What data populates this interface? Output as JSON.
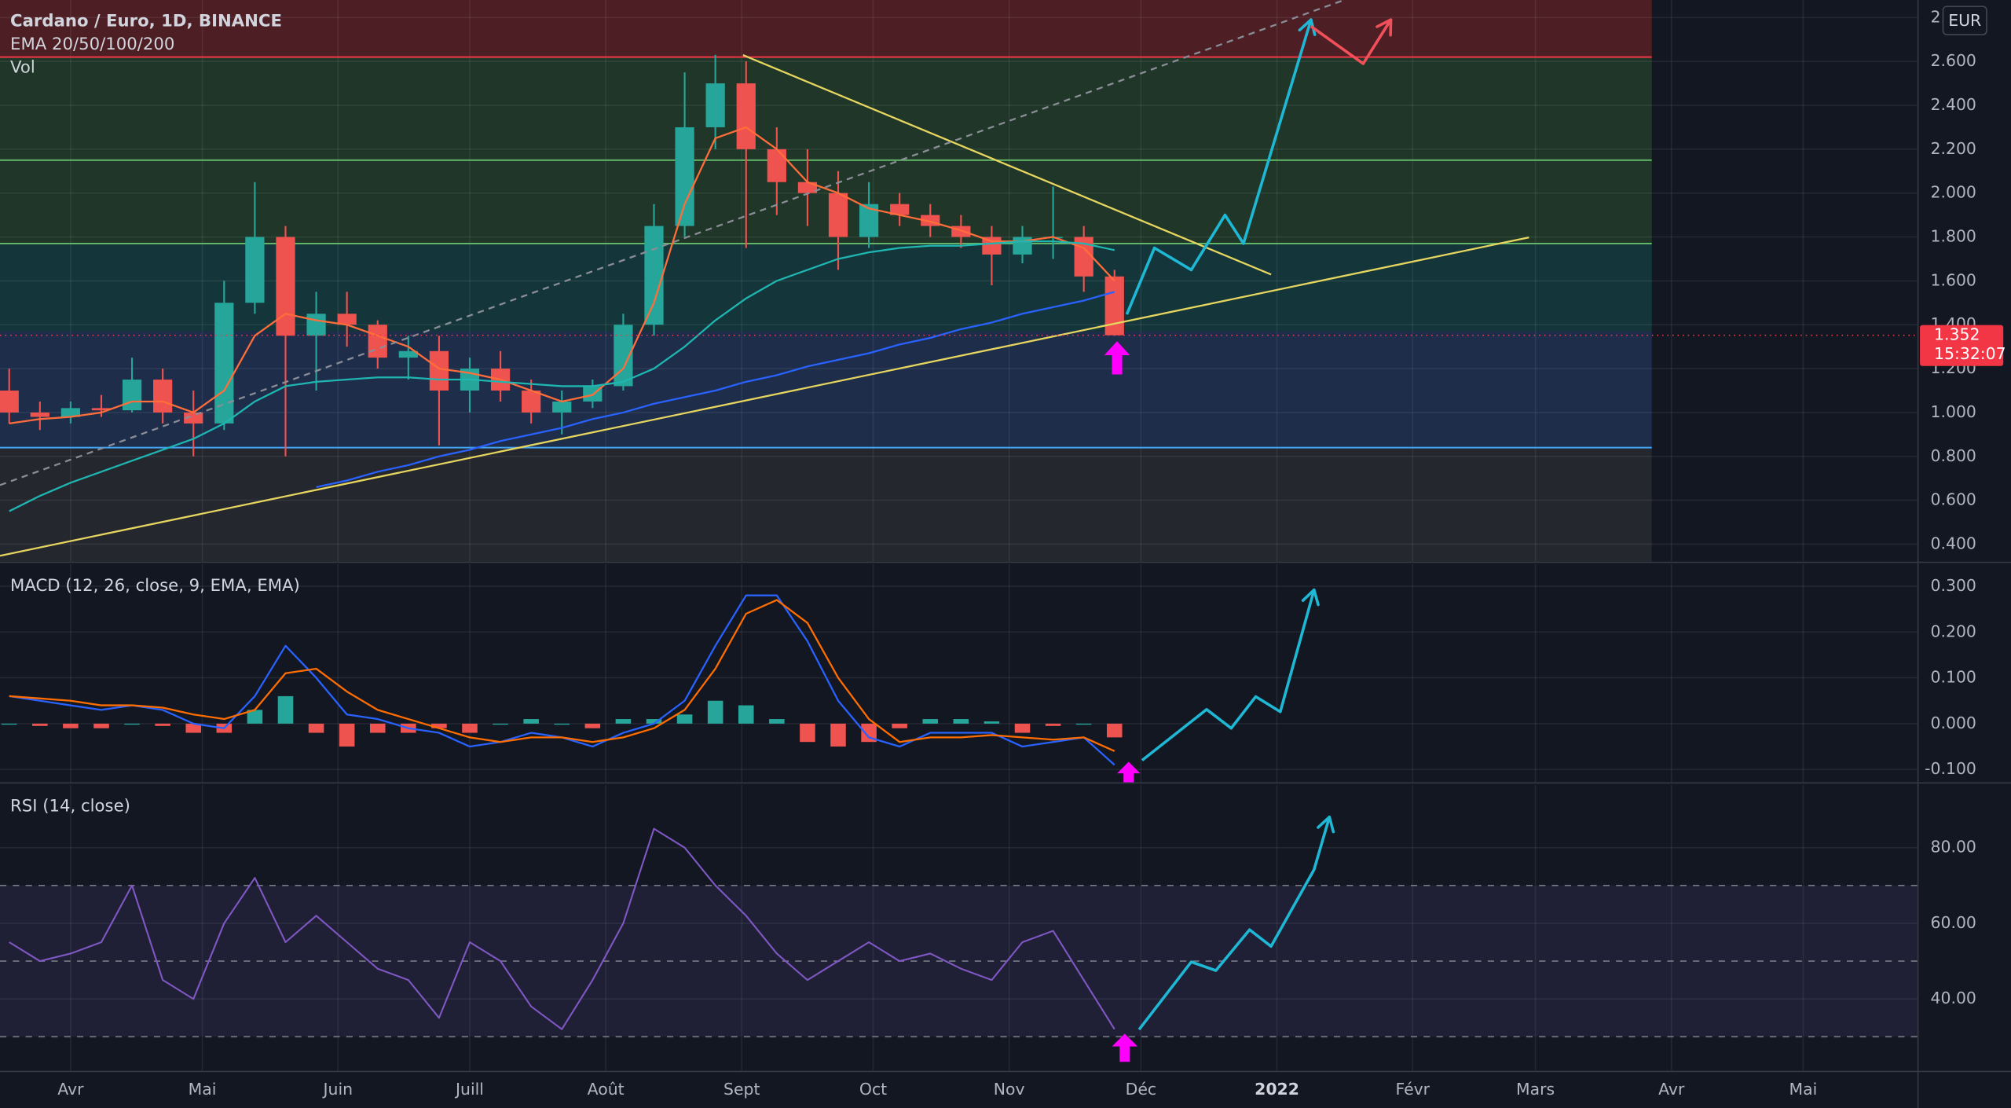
{
  "chart_data": [
    {
      "type": "candlestick",
      "title": "Cardano / Euro, 1D, BINANCE",
      "indicators_label": "EMA 20/50/100/200",
      "volume_label": "Vol",
      "currency": "EUR",
      "x": [
        -2,
        -1,
        0,
        1,
        2,
        3,
        4,
        5,
        6,
        7,
        8,
        9,
        10,
        11,
        12,
        13,
        14,
        15,
        16,
        17,
        18,
        19,
        20,
        21,
        22,
        23,
        24,
        25,
        26,
        27,
        28,
        29,
        30,
        31,
        32,
        33,
        34
      ],
      "open": [
        1.1,
        1.0,
        0.98,
        1.02,
        1.01,
        1.15,
        1.0,
        0.95,
        1.5,
        1.8,
        1.35,
        1.45,
        1.4,
        1.25,
        1.28,
        1.1,
        1.2,
        1.1,
        1.0,
        1.05,
        1.12,
        1.4,
        1.85,
        2.3,
        2.5,
        2.2,
        2.05,
        2.0,
        1.8,
        1.95,
        1.9,
        1.85,
        1.8,
        1.72,
        1.8,
        1.8,
        1.62
      ],
      "high": [
        1.2,
        1.05,
        1.05,
        1.08,
        1.25,
        1.2,
        1.1,
        1.6,
        2.05,
        1.85,
        1.55,
        1.55,
        1.42,
        1.35,
        1.35,
        1.25,
        1.28,
        1.15,
        1.1,
        1.15,
        1.45,
        1.95,
        2.55,
        2.63,
        2.6,
        2.3,
        2.2,
        2.1,
        2.05,
        2.0,
        1.95,
        1.9,
        1.85,
        1.85,
        2.03,
        1.85,
        1.65
      ],
      "low": [
        0.95,
        0.92,
        0.95,
        0.98,
        1.0,
        0.95,
        0.8,
        0.92,
        1.45,
        0.8,
        1.1,
        1.3,
        1.2,
        1.15,
        0.85,
        1.0,
        1.05,
        0.95,
        0.9,
        1.02,
        1.1,
        1.35,
        1.8,
        2.2,
        1.75,
        1.9,
        1.85,
        1.65,
        1.75,
        1.85,
        1.8,
        1.75,
        1.58,
        1.68,
        1.7,
        1.55,
        1.35
      ],
      "close": [
        1.0,
        0.98,
        1.02,
        1.01,
        1.15,
        1.0,
        0.95,
        1.5,
        1.8,
        1.35,
        1.45,
        1.4,
        1.25,
        1.28,
        1.1,
        1.2,
        1.1,
        1.0,
        1.05,
        1.12,
        1.4,
        1.85,
        2.3,
        2.5,
        2.2,
        2.05,
        2.0,
        1.8,
        1.95,
        1.9,
        1.85,
        1.8,
        1.72,
        1.8,
        1.8,
        1.62,
        1.352
      ],
      "up_color": "#26a69a",
      "down_color": "#ef5350",
      "ema_series": [
        {
          "color": "#ff6d3a",
          "values": [
            0.95,
            0.97,
            0.98,
            1.0,
            1.05,
            1.05,
            1.0,
            1.1,
            1.35,
            1.45,
            1.42,
            1.4,
            1.35,
            1.3,
            1.2,
            1.18,
            1.15,
            1.1,
            1.05,
            1.08,
            1.2,
            1.5,
            1.95,
            2.25,
            2.3,
            2.2,
            2.05,
            2.0,
            1.93,
            1.9,
            1.87,
            1.83,
            1.78,
            1.78,
            1.8,
            1.75,
            1.6
          ]
        },
        {
          "color": "#1fb5b0",
          "values": [
            0.55,
            0.62,
            0.68,
            0.73,
            0.78,
            0.83,
            0.88,
            0.95,
            1.05,
            1.12,
            1.14,
            1.15,
            1.16,
            1.16,
            1.15,
            1.15,
            1.14,
            1.13,
            1.12,
            1.12,
            1.14,
            1.2,
            1.3,
            1.42,
            1.52,
            1.6,
            1.65,
            1.7,
            1.73,
            1.75,
            1.76,
            1.76,
            1.77,
            1.78,
            1.78,
            1.77,
            1.74
          ]
        },
        {
          "color": "#2962ff",
          "values": [
            null,
            null,
            null,
            null,
            null,
            null,
            null,
            null,
            null,
            null,
            0.66,
            0.69,
            0.73,
            0.76,
            0.8,
            0.83,
            0.87,
            0.9,
            0.93,
            0.97,
            1.0,
            1.04,
            1.07,
            1.1,
            1.14,
            1.17,
            1.21,
            1.24,
            1.27,
            1.31,
            1.34,
            1.38,
            1.41,
            1.45,
            1.48,
            1.51,
            1.55
          ]
        }
      ],
      "xlim": [
        -2.3,
        60.15
      ],
      "ylim": [
        0.32,
        2.88
      ],
      "yticks": [
        {
          "value": 0.4,
          "label": "0.400"
        },
        {
          "value": 0.6,
          "label": "0.600"
        },
        {
          "value": 0.8,
          "label": "0.800"
        },
        {
          "value": 1.0,
          "label": "1.000"
        },
        {
          "value": 1.2,
          "label": "1.200"
        },
        {
          "value": 1.4,
          "label": "1.400"
        },
        {
          "value": 1.6,
          "label": "1.600"
        },
        {
          "value": 1.8,
          "label": "1.800"
        },
        {
          "value": 2.0,
          "label": "2.000"
        },
        {
          "value": 2.2,
          "label": "2.200"
        },
        {
          "value": 2.4,
          "label": "2.400"
        },
        {
          "value": 2.6,
          "label": "2.600"
        },
        {
          "value": 2.8,
          "label": "2.800"
        }
      ],
      "zones_x_end": 51.5,
      "zones": [
        {
          "from": 2.62,
          "to": 2.88,
          "color": "#4d1f25"
        },
        {
          "from": 1.77,
          "to": 2.62,
          "color": "#1f3628"
        },
        {
          "from": 1.37,
          "to": 1.77,
          "color": "#14363a"
        },
        {
          "from": 0.84,
          "to": 1.37,
          "color": "#1d2d4a"
        },
        {
          "from": 0.32,
          "to": 0.84,
          "color": "#25272f"
        }
      ],
      "levels": [
        {
          "value": 2.62,
          "color": "#f23645"
        },
        {
          "value": 2.15,
          "color": "#66bb6a"
        },
        {
          "value": 1.77,
          "color": "#66bb6a"
        },
        {
          "value": 0.84,
          "color": "#42a5f5"
        }
      ],
      "trendlines": [
        {
          "color": "#e6d660",
          "dashed": false,
          "points": [
            [
              21.9,
              2.629
            ],
            [
              39.1,
              1.629
            ]
          ]
        },
        {
          "color": "#e6d660",
          "dashed": false,
          "points": [
            [
              -2.3,
              0.347
            ],
            [
              47.5,
              1.798
            ]
          ]
        },
        {
          "color": "#8a8d96",
          "dashed": true,
          "points": [
            [
              -2.3,
              0.669
            ],
            [
              41.5,
              2.881
            ]
          ]
        }
      ],
      "forecasts": [
        {
          "color": "#1fb8d4",
          "points": [
            [
              34.4,
              1.447
            ],
            [
              35.3,
              1.75
            ],
            [
              36.5,
              1.65
            ],
            [
              37.6,
              1.9
            ],
            [
              38.2,
              1.77
            ],
            [
              40.4,
              2.79
            ]
          ]
        },
        {
          "color": "#f0505a",
          "points": [
            [
              40.4,
              2.76
            ],
            [
              42.1,
              2.59
            ],
            [
              43.0,
              2.79
            ]
          ]
        }
      ],
      "last_price": 1.352,
      "last_price_color": "#f23645",
      "countdown": "15:32:07"
    },
    {
      "type": "macd",
      "title": "MACD (12, 26, close, 9, EMA, EMA)",
      "x": [
        -2,
        -1,
        0,
        1,
        2,
        3,
        4,
        5,
        6,
        7,
        8,
        9,
        10,
        11,
        12,
        13,
        14,
        15,
        16,
        17,
        18,
        19,
        20,
        21,
        22,
        23,
        24,
        25,
        26,
        27,
        28,
        29,
        30,
        31,
        32,
        33,
        34
      ],
      "series": [
        {
          "color": "#2962ff",
          "values": [
            0.06,
            0.05,
            0.04,
            0.03,
            0.04,
            0.03,
            0.0,
            -0.01,
            0.06,
            0.17,
            0.1,
            0.02,
            0.01,
            -0.01,
            -0.02,
            -0.05,
            -0.04,
            -0.02,
            -0.03,
            -0.05,
            -0.02,
            0.0,
            0.05,
            0.17,
            0.28,
            0.28,
            0.18,
            0.05,
            -0.03,
            -0.05,
            -0.02,
            -0.02,
            -0.02,
            -0.05,
            -0.04,
            -0.03,
            -0.09
          ]
        },
        {
          "color": "#ff6d00",
          "values": [
            0.06,
            0.055,
            0.05,
            0.04,
            0.04,
            0.035,
            0.02,
            0.01,
            0.03,
            0.11,
            0.12,
            0.07,
            0.03,
            0.01,
            -0.01,
            -0.03,
            -0.04,
            -0.03,
            -0.03,
            -0.04,
            -0.03,
            -0.01,
            0.03,
            0.12,
            0.24,
            0.27,
            0.22,
            0.1,
            0.01,
            -0.04,
            -0.03,
            -0.03,
            -0.025,
            -0.03,
            -0.035,
            -0.03,
            -0.06
          ]
        }
      ],
      "histogram": {
        "up_color": "#26a69a",
        "down_color": "#ef5350",
        "values": [
          0,
          -0.005,
          -0.01,
          -0.01,
          0,
          -0.005,
          -0.02,
          -0.02,
          0.03,
          0.06,
          -0.02,
          -0.05,
          -0.02,
          -0.02,
          -0.01,
          -0.02,
          0,
          0.01,
          0,
          -0.01,
          0.01,
          0.01,
          0.02,
          0.05,
          0.04,
          0.01,
          -0.04,
          -0.05,
          -0.04,
          -0.01,
          0.01,
          0.01,
          0.005,
          -0.02,
          -0.005,
          0,
          -0.03
        ]
      },
      "xlim": [
        -2.3,
        60.15
      ],
      "ylim": [
        -0.128,
        0.348
      ],
      "yticks": [
        {
          "value": 0.3,
          "label": "0.300"
        },
        {
          "value": 0.2,
          "label": "0.200"
        },
        {
          "value": 0.1,
          "label": "0.100"
        },
        {
          "value": 0,
          "label": "0.000"
        },
        {
          "value": -0.1,
          "label": "-0.100"
        }
      ],
      "forecasts": [
        {
          "color": "#1fb8d4",
          "points": [
            [
              34.9,
              -0.08
            ],
            [
              37.0,
              0.031
            ],
            [
              37.8,
              -0.01
            ],
            [
              38.6,
              0.059
            ],
            [
              39.4,
              0.026
            ],
            [
              40.5,
              0.292
            ]
          ]
        }
      ]
    },
    {
      "type": "rsi",
      "title": "RSI (14, close)",
      "x": [
        -2,
        -1,
        0,
        1,
        2,
        3,
        4,
        5,
        6,
        7,
        8,
        9,
        10,
        11,
        12,
        13,
        14,
        15,
        16,
        17,
        18,
        19,
        20,
        21,
        22,
        23,
        24,
        25,
        26,
        27,
        28,
        29,
        30,
        31,
        32,
        33,
        34
      ],
      "series": [
        {
          "color": "#7e57c2",
          "values": [
            55,
            50,
            52,
            55,
            70,
            45,
            40,
            60,
            72,
            55,
            62,
            55,
            48,
            45,
            35,
            55,
            50,
            38,
            32,
            45,
            60,
            85,
            80,
            70,
            62,
            52,
            45,
            50,
            55,
            50,
            52,
            48,
            45,
            55,
            58,
            45,
            32
          ]
        }
      ],
      "band": [
        30,
        70
      ],
      "midline": 50,
      "xlim": [
        -2.3,
        60.15
      ],
      "ylim": [
        21,
        96.6
      ],
      "yticks": [
        {
          "value": 80,
          "label": "80.00"
        },
        {
          "value": 60,
          "label": "60.00"
        },
        {
          "value": 40,
          "label": "40.00"
        }
      ],
      "xticks": [
        {
          "value": 0,
          "label": "Avr"
        },
        {
          "value": 4.29,
          "label": "Mai"
        },
        {
          "value": 8.71,
          "label": "Juin"
        },
        {
          "value": 13,
          "label": "Juill"
        },
        {
          "value": 17.43,
          "label": "Août"
        },
        {
          "value": 21.86,
          "label": "Sept"
        },
        {
          "value": 26.14,
          "label": "Oct"
        },
        {
          "value": 30.57,
          "label": "Nov"
        },
        {
          "value": 34.86,
          "label": "Déc"
        },
        {
          "value": 39.29,
          "label": "2022"
        },
        {
          "value": 43.71,
          "label": "Févr"
        },
        {
          "value": 47.71,
          "label": "Mars"
        },
        {
          "value": 52.14,
          "label": "Avr"
        },
        {
          "value": 56.43,
          "label": "Mai"
        }
      ],
      "forecasts": [
        {
          "color": "#1fb8d4",
          "points": [
            [
              34.8,
              31.9
            ],
            [
              36.5,
              49.8
            ],
            [
              37.3,
              47.5
            ],
            [
              38.4,
              58.3
            ],
            [
              39.1,
              53.9
            ],
            [
              40.5,
              74.2
            ],
            [
              41.0,
              88.1
            ]
          ]
        }
      ]
    }
  ]
}
